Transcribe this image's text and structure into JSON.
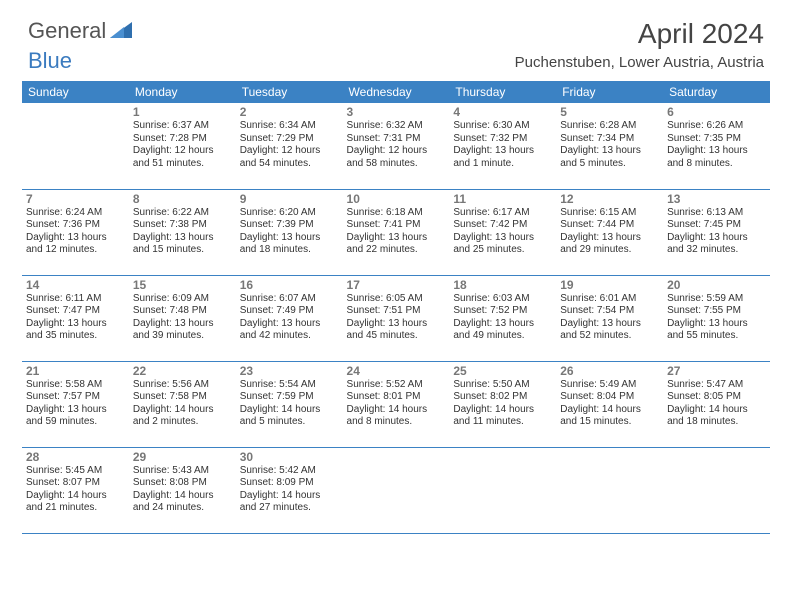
{
  "brand": {
    "part1": "General",
    "part2": "Blue"
  },
  "title": "April 2024",
  "location": "Puchenstuben, Lower Austria, Austria",
  "colors": {
    "header_bg": "#3b82c4",
    "header_text": "#ffffff",
    "daynum": "#777777",
    "body_text": "#333333",
    "rule": "#3b82c4",
    "brand_gray": "#555555",
    "brand_blue": "#3b7bbf"
  },
  "typography": {
    "title_fontsize": 28,
    "location_fontsize": 15,
    "header_fontsize": 12,
    "daynum_fontsize": 12,
    "cell_fontsize": 10
  },
  "weekdays": [
    "Sunday",
    "Monday",
    "Tuesday",
    "Wednesday",
    "Thursday",
    "Friday",
    "Saturday"
  ],
  "weeks": [
    [
      null,
      {
        "n": "1",
        "sr": "Sunrise: 6:37 AM",
        "ss": "Sunset: 7:28 PM",
        "d1": "Daylight: 12 hours",
        "d2": "and 51 minutes."
      },
      {
        "n": "2",
        "sr": "Sunrise: 6:34 AM",
        "ss": "Sunset: 7:29 PM",
        "d1": "Daylight: 12 hours",
        "d2": "and 54 minutes."
      },
      {
        "n": "3",
        "sr": "Sunrise: 6:32 AM",
        "ss": "Sunset: 7:31 PM",
        "d1": "Daylight: 12 hours",
        "d2": "and 58 minutes."
      },
      {
        "n": "4",
        "sr": "Sunrise: 6:30 AM",
        "ss": "Sunset: 7:32 PM",
        "d1": "Daylight: 13 hours",
        "d2": "and 1 minute."
      },
      {
        "n": "5",
        "sr": "Sunrise: 6:28 AM",
        "ss": "Sunset: 7:34 PM",
        "d1": "Daylight: 13 hours",
        "d2": "and 5 minutes."
      },
      {
        "n": "6",
        "sr": "Sunrise: 6:26 AM",
        "ss": "Sunset: 7:35 PM",
        "d1": "Daylight: 13 hours",
        "d2": "and 8 minutes."
      }
    ],
    [
      {
        "n": "7",
        "sr": "Sunrise: 6:24 AM",
        "ss": "Sunset: 7:36 PM",
        "d1": "Daylight: 13 hours",
        "d2": "and 12 minutes."
      },
      {
        "n": "8",
        "sr": "Sunrise: 6:22 AM",
        "ss": "Sunset: 7:38 PM",
        "d1": "Daylight: 13 hours",
        "d2": "and 15 minutes."
      },
      {
        "n": "9",
        "sr": "Sunrise: 6:20 AM",
        "ss": "Sunset: 7:39 PM",
        "d1": "Daylight: 13 hours",
        "d2": "and 18 minutes."
      },
      {
        "n": "10",
        "sr": "Sunrise: 6:18 AM",
        "ss": "Sunset: 7:41 PM",
        "d1": "Daylight: 13 hours",
        "d2": "and 22 minutes."
      },
      {
        "n": "11",
        "sr": "Sunrise: 6:17 AM",
        "ss": "Sunset: 7:42 PM",
        "d1": "Daylight: 13 hours",
        "d2": "and 25 minutes."
      },
      {
        "n": "12",
        "sr": "Sunrise: 6:15 AM",
        "ss": "Sunset: 7:44 PM",
        "d1": "Daylight: 13 hours",
        "d2": "and 29 minutes."
      },
      {
        "n": "13",
        "sr": "Sunrise: 6:13 AM",
        "ss": "Sunset: 7:45 PM",
        "d1": "Daylight: 13 hours",
        "d2": "and 32 minutes."
      }
    ],
    [
      {
        "n": "14",
        "sr": "Sunrise: 6:11 AM",
        "ss": "Sunset: 7:47 PM",
        "d1": "Daylight: 13 hours",
        "d2": "and 35 minutes."
      },
      {
        "n": "15",
        "sr": "Sunrise: 6:09 AM",
        "ss": "Sunset: 7:48 PM",
        "d1": "Daylight: 13 hours",
        "d2": "and 39 minutes."
      },
      {
        "n": "16",
        "sr": "Sunrise: 6:07 AM",
        "ss": "Sunset: 7:49 PM",
        "d1": "Daylight: 13 hours",
        "d2": "and 42 minutes."
      },
      {
        "n": "17",
        "sr": "Sunrise: 6:05 AM",
        "ss": "Sunset: 7:51 PM",
        "d1": "Daylight: 13 hours",
        "d2": "and 45 minutes."
      },
      {
        "n": "18",
        "sr": "Sunrise: 6:03 AM",
        "ss": "Sunset: 7:52 PM",
        "d1": "Daylight: 13 hours",
        "d2": "and 49 minutes."
      },
      {
        "n": "19",
        "sr": "Sunrise: 6:01 AM",
        "ss": "Sunset: 7:54 PM",
        "d1": "Daylight: 13 hours",
        "d2": "and 52 minutes."
      },
      {
        "n": "20",
        "sr": "Sunrise: 5:59 AM",
        "ss": "Sunset: 7:55 PM",
        "d1": "Daylight: 13 hours",
        "d2": "and 55 minutes."
      }
    ],
    [
      {
        "n": "21",
        "sr": "Sunrise: 5:58 AM",
        "ss": "Sunset: 7:57 PM",
        "d1": "Daylight: 13 hours",
        "d2": "and 59 minutes."
      },
      {
        "n": "22",
        "sr": "Sunrise: 5:56 AM",
        "ss": "Sunset: 7:58 PM",
        "d1": "Daylight: 14 hours",
        "d2": "and 2 minutes."
      },
      {
        "n": "23",
        "sr": "Sunrise: 5:54 AM",
        "ss": "Sunset: 7:59 PM",
        "d1": "Daylight: 14 hours",
        "d2": "and 5 minutes."
      },
      {
        "n": "24",
        "sr": "Sunrise: 5:52 AM",
        "ss": "Sunset: 8:01 PM",
        "d1": "Daylight: 14 hours",
        "d2": "and 8 minutes."
      },
      {
        "n": "25",
        "sr": "Sunrise: 5:50 AM",
        "ss": "Sunset: 8:02 PM",
        "d1": "Daylight: 14 hours",
        "d2": "and 11 minutes."
      },
      {
        "n": "26",
        "sr": "Sunrise: 5:49 AM",
        "ss": "Sunset: 8:04 PM",
        "d1": "Daylight: 14 hours",
        "d2": "and 15 minutes."
      },
      {
        "n": "27",
        "sr": "Sunrise: 5:47 AM",
        "ss": "Sunset: 8:05 PM",
        "d1": "Daylight: 14 hours",
        "d2": "and 18 minutes."
      }
    ],
    [
      {
        "n": "28",
        "sr": "Sunrise: 5:45 AM",
        "ss": "Sunset: 8:07 PM",
        "d1": "Daylight: 14 hours",
        "d2": "and 21 minutes."
      },
      {
        "n": "29",
        "sr": "Sunrise: 5:43 AM",
        "ss": "Sunset: 8:08 PM",
        "d1": "Daylight: 14 hours",
        "d2": "and 24 minutes."
      },
      {
        "n": "30",
        "sr": "Sunrise: 5:42 AM",
        "ss": "Sunset: 8:09 PM",
        "d1": "Daylight: 14 hours",
        "d2": "and 27 minutes."
      },
      null,
      null,
      null,
      null
    ]
  ]
}
